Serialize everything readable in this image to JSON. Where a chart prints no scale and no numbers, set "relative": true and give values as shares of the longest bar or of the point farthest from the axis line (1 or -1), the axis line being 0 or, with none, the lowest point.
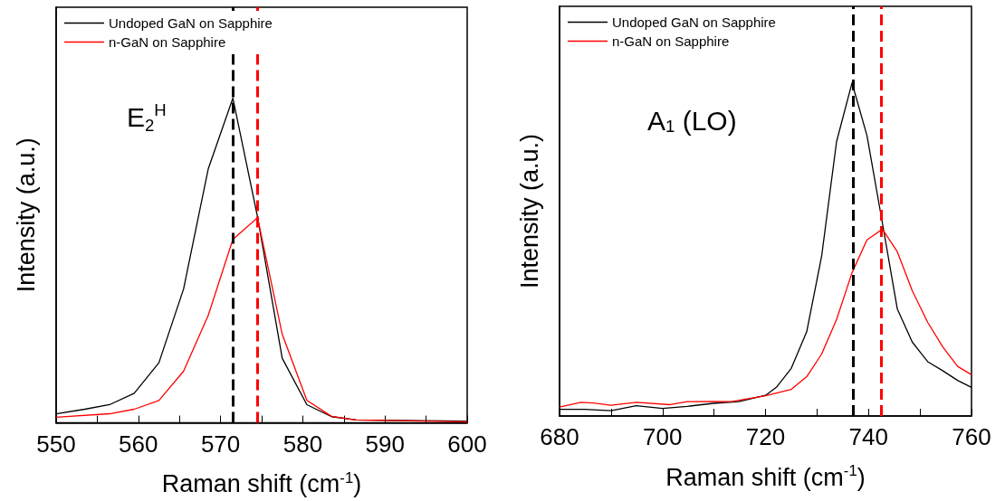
{
  "chart_data": [
    {
      "type": "line",
      "relative": true,
      "xlabel": "Raman shift (cm$^{-1}$)",
      "ylabel": "Intensity (a.u.)",
      "annotations": [
        "E$_{2}$$^{H}$"
      ],
      "xlim": [
        550,
        600
      ],
      "xticks": [
        550,
        {
          "value": 555,
          "label": null
        },
        560,
        {
          "value": 565,
          "label": null
        },
        570,
        {
          "value": 575,
          "label": null
        },
        580,
        {
          "value": 585,
          "label": null
        },
        590,
        {
          "value": 595,
          "label": null
        },
        600
      ],
      "legend": "top left",
      "grid": false,
      "marker": "none",
      "line_style": "solid",
      "ref_lines": [
        {
          "axis": "x",
          "value": 571.5,
          "label": null,
          "color": "#000000",
          "line_style": "dashed"
        },
        {
          "axis": "x",
          "value": 574.5,
          "label": null,
          "color": "#ff0000",
          "line_style": "dashed"
        }
      ],
      "series": [
        {
          "name": "Undoped GaN on Sapphire",
          "color": "#000000",
          "x": [
            550,
            553.5,
            556.5,
            559.5,
            562.5,
            565.5,
            568.5,
            571.5,
            574.5,
            577.5,
            580.5,
            583.5,
            586.5,
            600
          ],
          "values": [
            0.028,
            0.042,
            0.056,
            0.091,
            0.185,
            0.412,
            0.782,
            1,
            0.634,
            0.199,
            0.056,
            0.019,
            0.009,
            0.005
          ]
        },
        {
          "name": "n-GaN on Sapphire",
          "color": "#ff0000",
          "x": [
            550,
            556.5,
            559.5,
            562.5,
            565.5,
            568.5,
            571.5,
            574.5,
            577.5,
            580.5,
            583.5,
            586.5,
            600
          ],
          "values": [
            0.017,
            0.028,
            0.042,
            0.069,
            0.159,
            0.331,
            0.565,
            0.632,
            0.273,
            0.069,
            0.02,
            0.009,
            0.003
          ]
        }
      ]
    },
    {
      "type": "line",
      "relative": true,
      "xlabel": "Raman shift (cm$^{-1}$)",
      "ylabel": "Intensity (a.u.)",
      "annotations": [
        "A$_{1}$ (LO)"
      ],
      "xlim": [
        680,
        760
      ],
      "xticks": [
        680,
        {
          "value": 690,
          "label": null
        },
        700,
        {
          "value": 710,
          "label": null
        },
        720,
        {
          "value": 730,
          "label": null
        },
        740,
        {
          "value": 750,
          "label": null
        },
        760
      ],
      "legend": "top left",
      "grid": false,
      "marker": "none",
      "line_style": "solid",
      "ref_lines": [
        {
          "axis": "x",
          "value": 737,
          "label": null,
          "color": "#000000",
          "line_style": "dashed"
        },
        {
          "axis": "x",
          "value": 742.5,
          "label": null,
          "color": "#ff0000",
          "line_style": "dashed"
        }
      ],
      "series": [
        {
          "name": "Undoped GaN on Sapphire",
          "color": "#000000",
          "x": [
            680,
            684.8,
            690,
            694.9,
            700,
            704.8,
            709.9,
            714.8,
            720,
            722.1,
            725,
            728,
            730.9,
            733.8,
            736.8,
            739.7,
            742.7,
            745.6,
            748.5,
            751.5,
            754.4,
            757.3,
            760
          ],
          "values": [
            0.02,
            0.02,
            0.016,
            0.031,
            0.023,
            0.029,
            0.038,
            0.043,
            0.062,
            0.086,
            0.143,
            0.253,
            0.48,
            0.824,
            1,
            0.842,
            0.579,
            0.321,
            0.222,
            0.163,
            0.136,
            0.107,
            0.086
          ]
        },
        {
          "name": "n-GaN on Sapphire",
          "color": "#ff0000",
          "x": [
            680,
            684.2,
            686.6,
            690,
            694.9,
            701.5,
            704.8,
            709.9,
            713.3,
            720,
            725,
            728,
            730.9,
            733.8,
            736.8,
            739.7,
            742.7,
            745.6,
            748.5,
            751.5,
            754.4,
            757.3,
            760
          ],
          "values": [
            0.027,
            0.041,
            0.039,
            0.032,
            0.041,
            0.034,
            0.043,
            0.044,
            0.043,
            0.061,
            0.08,
            0.118,
            0.186,
            0.29,
            0.43,
            0.529,
            0.561,
            0.493,
            0.376,
            0.281,
            0.208,
            0.149,
            0.124
          ]
        }
      ]
    }
  ]
}
